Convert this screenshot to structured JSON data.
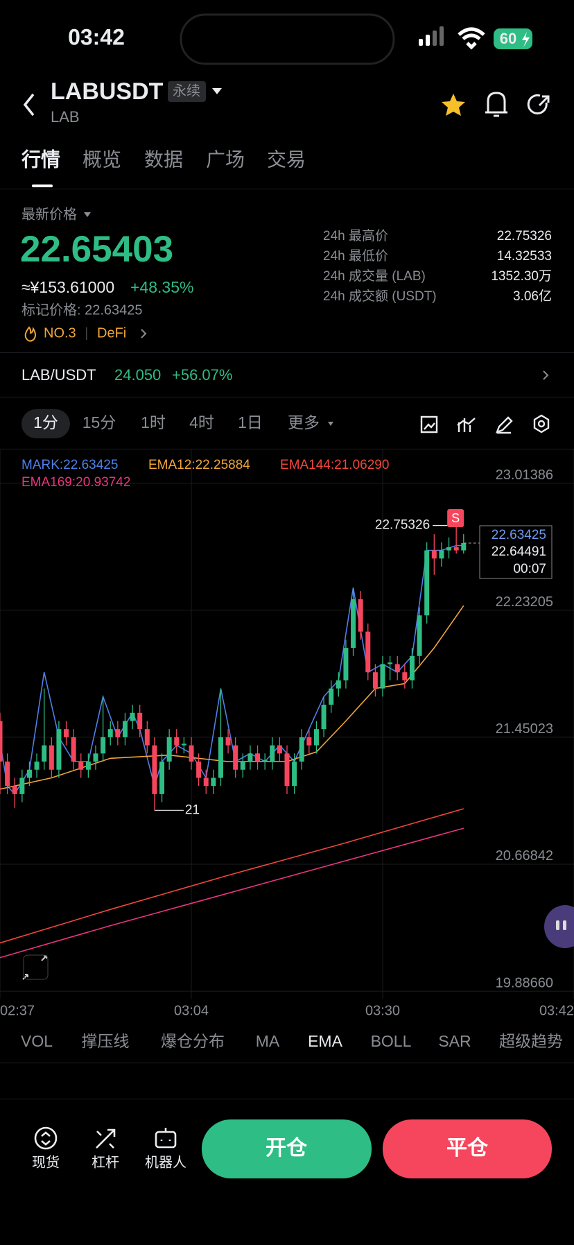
{
  "status_bar": {
    "time": "03:42",
    "battery": "60"
  },
  "header": {
    "title": "LABUSDT",
    "tag": "永续",
    "subtitle": "LAB"
  },
  "tabs": [
    "行情",
    "概览",
    "数据",
    "广场",
    "交易"
  ],
  "price": {
    "label": "最新价格",
    "last": "22.65403",
    "cny": "≈¥153.61000",
    "change": "+48.35%",
    "mark_price": "标记价格: 22.63425",
    "rank": "NO.3",
    "sector": "DeFi"
  },
  "stats": [
    [
      "24h 最高价",
      "22.75326"
    ],
    [
      "24h 最低价",
      "14.32533"
    ],
    [
      "24h 成交量 (LAB)",
      "1352.30万"
    ],
    [
      "24h 成交额 (USDT)",
      "3.06亿"
    ]
  ],
  "spot": {
    "pair": "LAB/USDT",
    "price": "24.050",
    "change": "+56.07%"
  },
  "intervals": [
    "1分",
    "15分",
    "1时",
    "4时",
    "1日",
    "更多"
  ],
  "chart_data": {
    "type": "candlestick",
    "up_color": "#2ebd85",
    "down_color": "#f6465d",
    "ylim": [
      19.84,
      23.2
    ],
    "yticks": [
      23.01386,
      22.23205,
      21.45023,
      20.66842,
      {
        "value": 19.8866,
        "label": "19.88660"
      }
    ],
    "xlim": [
      1,
      79
    ],
    "xticks": [
      {
        "value": 1,
        "label": "02:37"
      },
      {
        "value": 27,
        "label": "03:04"
      },
      {
        "value": 53,
        "label": "03:30"
      },
      {
        "value": 79,
        "label": "03:42"
      }
    ],
    "grid": true,
    "candles": [
      [
        21.75,
        21.85,
        21.5,
        21.55
      ],
      [
        21.55,
        21.6,
        21.1,
        21.3
      ],
      [
        21.3,
        21.35,
        21.1,
        21.15
      ],
      [
        21.15,
        21.2,
        21.01501,
        21.1
      ],
      [
        21.1,
        21.25,
        21.05,
        21.2
      ],
      [
        21.2,
        21.3,
        21.15,
        21.25
      ],
      [
        21.25,
        21.35,
        21.2,
        21.3
      ],
      [
        21.3,
        21.75,
        21.25,
        21.4
      ],
      [
        21.4,
        21.45,
        21.2,
        21.25
      ],
      [
        21.25,
        21.55,
        21.2,
        21.5
      ],
      [
        21.5,
        21.55,
        21.4,
        21.45
      ],
      [
        21.45,
        21.5,
        21.25,
        21.3
      ],
      [
        21.3,
        21.35,
        21.2,
        21.25
      ],
      [
        21.25,
        21.35,
        21.2,
        21.3
      ],
      [
        21.3,
        21.4,
        21.25,
        21.35
      ],
      [
        21.35,
        21.7,
        21.3,
        21.45
      ],
      [
        21.45,
        21.55,
        21.4,
        21.5
      ],
      [
        21.5,
        21.55,
        21.4,
        21.45
      ],
      [
        21.45,
        21.6,
        21.4,
        21.55
      ],
      [
        21.55,
        21.65,
        21.5,
        21.6
      ],
      [
        21.6,
        21.65,
        21.45,
        21.5
      ],
      [
        21.5,
        21.55,
        21.35,
        21.4
      ],
      [
        21.4,
        21.45,
        21.0,
        21.1
      ],
      [
        21.1,
        21.35,
        21.05,
        21.3
      ],
      [
        21.3,
        21.5,
        21.25,
        21.45
      ],
      [
        21.45,
        21.5,
        21.35,
        21.4
      ],
      [
        21.4,
        21.45,
        21.35,
        21.41
      ],
      [
        21.4,
        21.45,
        21.25,
        21.3
      ],
      [
        21.3,
        21.35,
        21.15,
        21.2
      ],
      [
        21.2,
        21.25,
        21.1,
        21.15
      ],
      [
        21.15,
        21.25,
        21.1,
        21.2
      ],
      [
        21.2,
        21.75,
        21.15,
        21.45
      ],
      [
        21.45,
        21.5,
        21.35,
        21.4
      ],
      [
        21.4,
        21.45,
        21.2,
        21.25
      ],
      [
        21.25,
        21.35,
        21.2,
        21.3
      ],
      [
        21.3,
        21.4,
        21.25,
        21.35
      ],
      [
        21.35,
        21.4,
        21.25,
        21.3
      ],
      [
        21.3,
        21.35,
        21.25,
        21.31
      ],
      [
        21.3,
        21.45,
        21.25,
        21.4
      ],
      [
        21.4,
        21.45,
        21.3,
        21.35
      ],
      [
        21.35,
        21.4,
        21.1,
        21.15
      ],
      [
        21.15,
        21.35,
        21.1,
        21.3
      ],
      [
        21.3,
        21.5,
        21.25,
        21.45
      ],
      [
        21.45,
        21.5,
        21.35,
        21.4
      ],
      [
        21.4,
        21.55,
        21.35,
        21.5
      ],
      [
        21.5,
        21.7,
        21.45,
        21.65
      ],
      [
        21.65,
        21.8,
        21.6,
        21.75
      ],
      [
        21.75,
        21.85,
        21.7,
        21.8
      ],
      [
        21.8,
        22.05,
        21.75,
        22.0
      ],
      [
        22.0,
        22.37,
        21.95,
        22.3
      ],
      [
        22.3,
        22.35,
        22.05,
        22.1
      ],
      [
        22.1,
        22.15,
        21.8,
        21.85
      ],
      [
        21.85,
        21.9,
        21.7,
        21.75
      ],
      [
        21.75,
        21.95,
        21.7,
        21.9
      ],
      [
        21.9,
        21.95,
        21.8,
        21.91
      ],
      [
        21.9,
        21.95,
        21.8,
        21.85
      ],
      [
        21.85,
        21.9,
        21.75,
        21.8
      ],
      [
        21.8,
        22.0,
        21.75,
        21.95
      ],
      [
        21.95,
        22.25,
        21.9,
        22.2
      ],
      [
        22.2,
        22.65,
        22.15,
        22.6
      ],
      [
        22.6,
        22.7,
        22.45,
        22.55
      ],
      [
        22.55,
        22.65,
        22.5,
        22.6
      ],
      [
        22.6,
        22.68,
        22.55,
        22.62
      ],
      [
        22.62,
        22.75326,
        22.58,
        22.6
      ],
      [
        22.6,
        22.7,
        22.58,
        22.64491
      ]
    ],
    "series": [
      {
        "name": "MARK:22.63425",
        "color": "#4e7fe8",
        "x": [
          0,
          2,
          3,
          5,
          7,
          9,
          11,
          13,
          15,
          17,
          19,
          20,
          22,
          23,
          25,
          27,
          29,
          31,
          33,
          35,
          37,
          39,
          41,
          43,
          45,
          47,
          49,
          51,
          53,
          55,
          57,
          59,
          61,
          63,
          64
        ],
        "values": [
          21.7,
          21.15,
          21.1,
          21.25,
          21.85,
          21.45,
          21.3,
          21.3,
          21.7,
          21.45,
          21.6,
          21.5,
          21.15,
          21.3,
          21.4,
          21.35,
          21.2,
          21.75,
          21.3,
          21.35,
          21.3,
          21.4,
          21.3,
          21.5,
          21.7,
          21.8,
          22.37,
          21.85,
          21.9,
          21.85,
          21.95,
          22.6,
          22.6,
          22.63,
          22.63
        ]
      },
      {
        "name": "EMA12:22.25884",
        "color": "#f0a53a",
        "x": [
          0,
          8,
          16,
          24,
          32,
          40,
          44,
          48,
          52,
          56,
          60,
          64
        ],
        "values": [
          21.12,
          21.2,
          21.32,
          21.34,
          21.3,
          21.3,
          21.36,
          21.55,
          21.75,
          21.78,
          22.0,
          22.26
        ]
      },
      {
        "name": "EMA144:21.06290",
        "color": "#f0463c",
        "x": [
          0,
          16,
          32,
          48,
          64
        ],
        "values": [
          20.17,
          20.39,
          20.6,
          20.8,
          21.01
        ]
      },
      {
        "name": "EMA169:20.93742",
        "color": "#e8357f",
        "x": [
          0,
          16,
          32,
          48,
          64
        ],
        "values": [
          20.08,
          20.29,
          20.49,
          20.69,
          20.89
        ]
      }
    ],
    "signal": "S",
    "price_box": {
      "mark": "22.63425",
      "countdown": "00:07"
    }
  },
  "indicator_tabs": [
    "VOL",
    "撑压线",
    "爆仓分布",
    "MA",
    "EMA",
    "BOLL",
    "SAR",
    "超级趋势"
  ],
  "bottom_nav": [
    "现货",
    "杠杆",
    "机器人"
  ],
  "actions": [
    "开仓",
    "平仓"
  ]
}
